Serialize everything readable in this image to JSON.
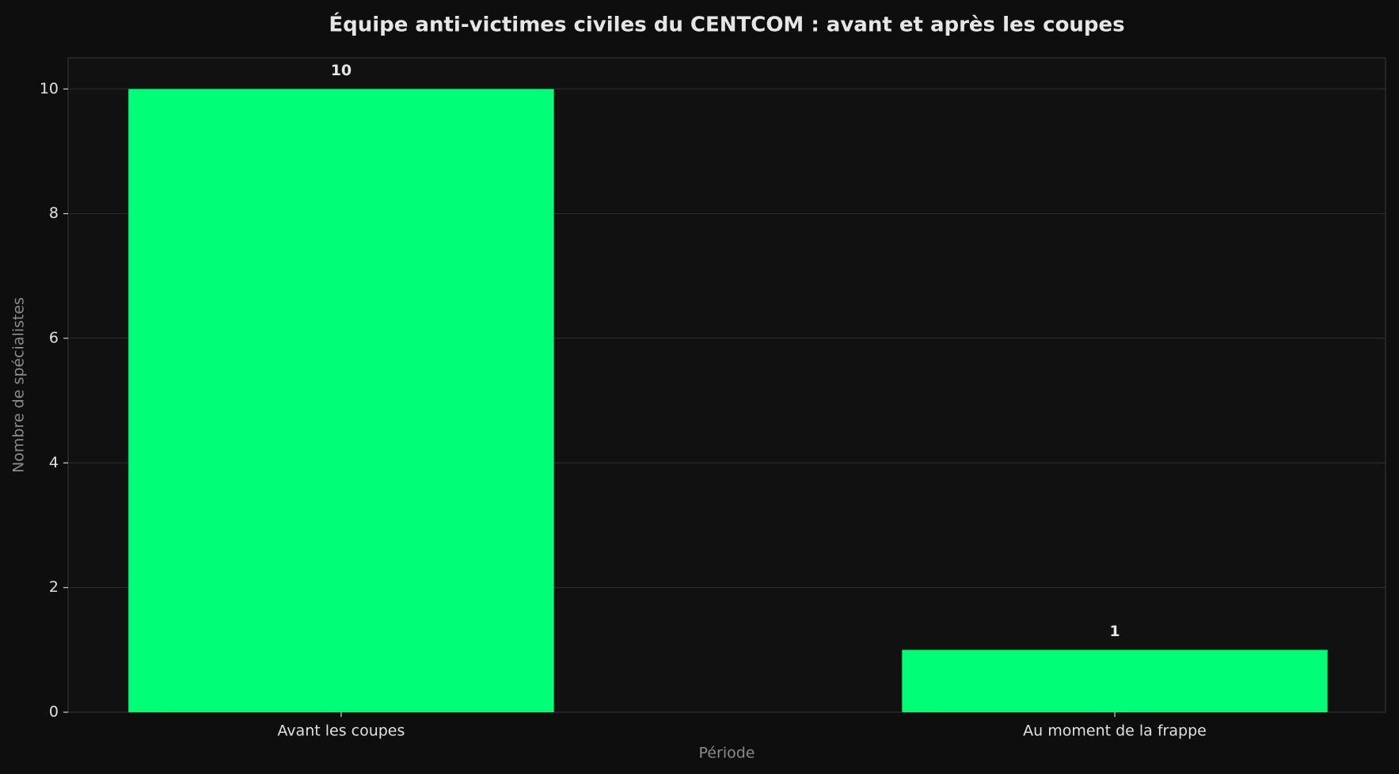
{
  "chart_data": {
    "type": "bar",
    "title": "Équipe anti-victimes civiles du CENTCOM : avant et après les coupes",
    "x_label": "Période",
    "y_label": "Nombre de spécialistes",
    "categories": [
      "Avant les coupes",
      "Au moment de la frappe"
    ],
    "values": [
      10,
      1
    ],
    "color": "#00ff77",
    "ylim": [
      0,
      10.5
    ],
    "yticks": [
      0,
      2,
      4,
      6,
      8,
      10
    ],
    "grid": true
  }
}
